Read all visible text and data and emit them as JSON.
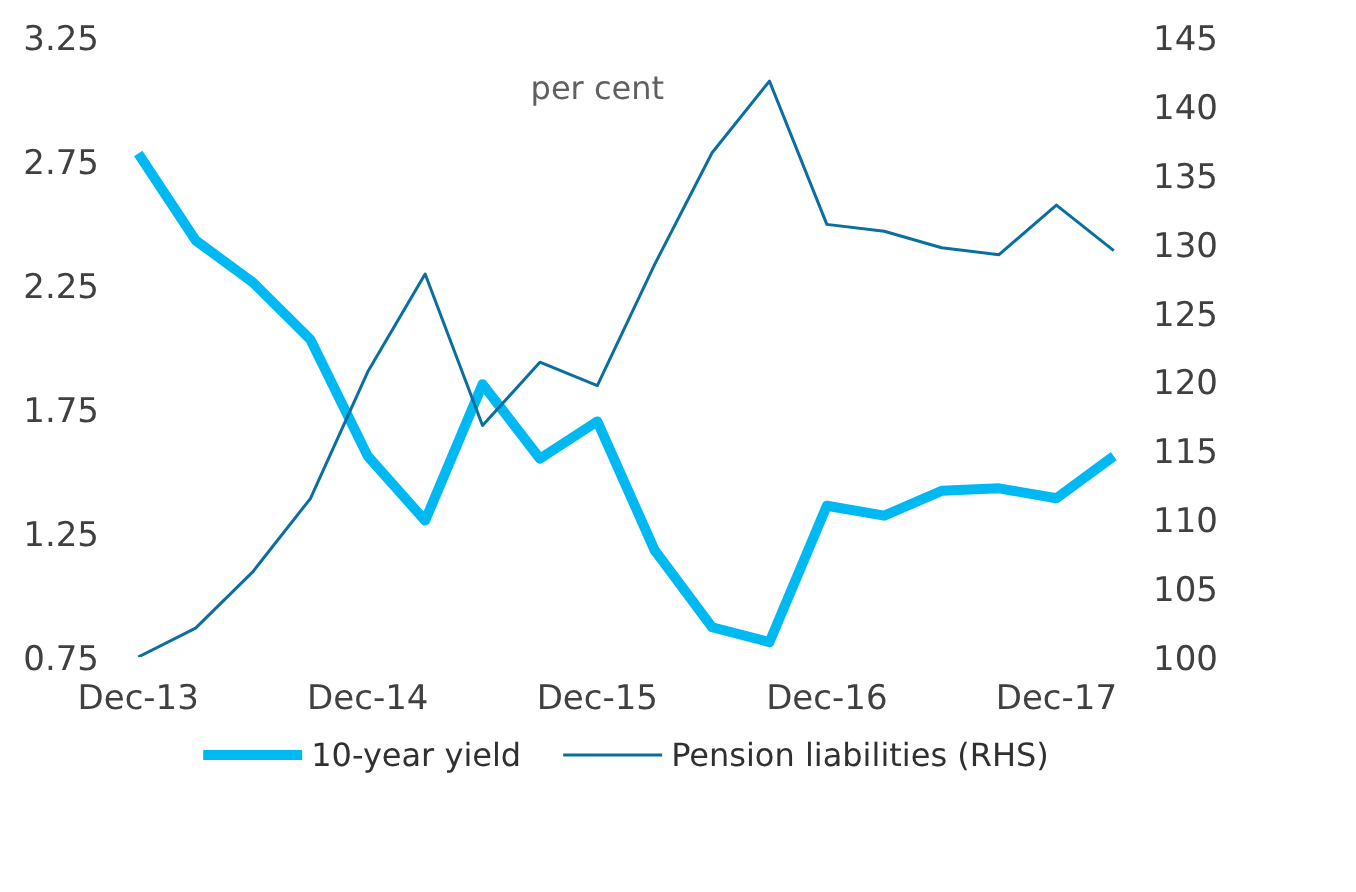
{
  "chart_data": {
    "type": "line",
    "categories": [
      "Dec-13",
      null,
      null,
      null,
      "Dec-14",
      null,
      null,
      null,
      "Dec-15",
      null,
      null,
      null,
      "Dec-16",
      null,
      null,
      null,
      "Dec-17",
      null
    ],
    "series": [
      {
        "name": "10-year yield",
        "color": "#00b9f2",
        "values": [
          2.78,
          2.43,
          2.26,
          2.03,
          1.56,
          1.3,
          1.85,
          1.55,
          1.7,
          1.18,
          0.87,
          0.81,
          1.36,
          1.32,
          1.42,
          1.43,
          1.39,
          1.56
        ]
      },
      {
        "name": "Pension liabilities (RHS)",
        "color": "#0a6f9e",
        "axis": "y2",
        "values": [
          100,
          102.1,
          106.2,
          111.5,
          120.7,
          127.8,
          116.8,
          121.4,
          119.7,
          128.5,
          136.6,
          141.8,
          131.4,
          130.9,
          129.7,
          129.2,
          132.8,
          129.5
        ]
      }
    ],
    "ylim": [
      0.75,
      3.25
    ],
    "yticks": [
      0.75,
      1.25,
      1.75,
      2.25,
      2.75,
      3.25
    ],
    "y2lim": [
      100,
      145
    ],
    "y2ticks": [
      100,
      105,
      110,
      115,
      120,
      125,
      130,
      135,
      140,
      145
    ],
    "annotations": [
      "per cent"
    ],
    "legend": "bottom",
    "grid": false
  }
}
